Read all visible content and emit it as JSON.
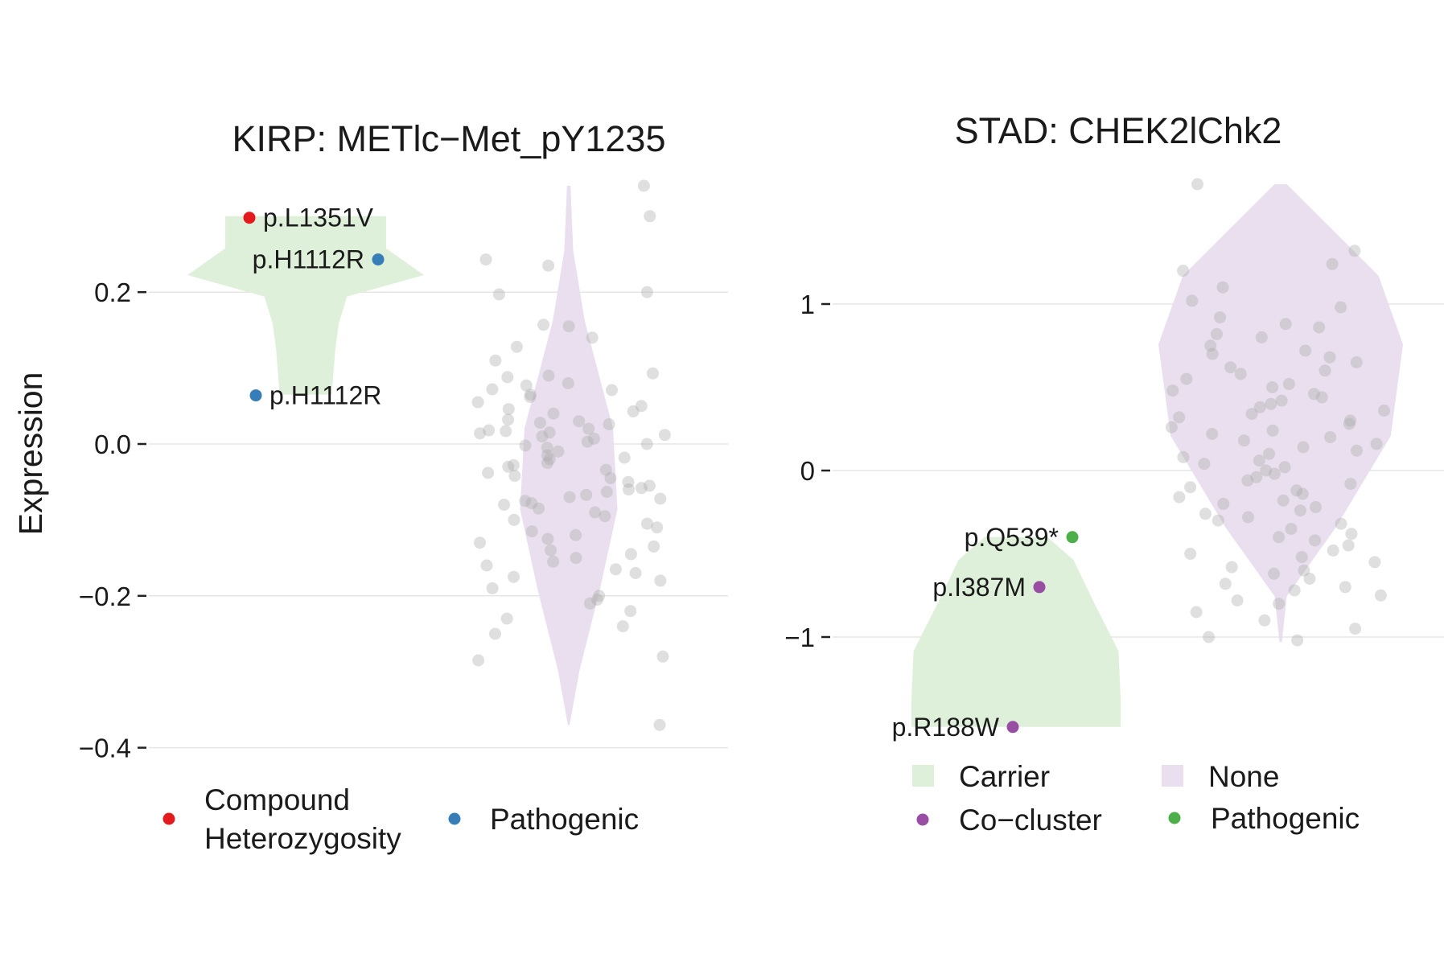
{
  "chart_data": [
    {
      "type": "violin",
      "title": "KIRP: METlc−Met_pY1235",
      "ylabel": "Expression",
      "xlabel": "",
      "ylim": [
        -0.42,
        0.365
      ],
      "yticks": [
        0.2,
        0.0,
        -0.2,
        -0.4
      ],
      "ytick_labels": [
        "0.2",
        "0.0",
        "−0.2",
        "−0.4"
      ],
      "groups": [
        {
          "name": "Carrier",
          "color": "#dff0da",
          "ymin": 0.065,
          "ymax": 0.3
        },
        {
          "name": "None",
          "color": "#e9dfee",
          "ymin": -0.37,
          "ymax": 0.34
        }
      ],
      "highlighted_points": [
        {
          "group": "Carrier",
          "y": 0.298,
          "label": "p.L1351V",
          "category": "Compound Heterozygosity",
          "color": "#e41a1c"
        },
        {
          "group": "Carrier",
          "y": 0.243,
          "label": "p.H1112R",
          "category": "Pathogenic",
          "color": "#377eb8"
        },
        {
          "group": "Carrier",
          "y": 0.064,
          "label": "p.H1112R",
          "category": "Pathogenic",
          "color": "#377eb8"
        }
      ],
      "background_points_y": [
        0.34,
        0.3,
        0.243,
        0.235,
        0.2,
        0.197,
        0.157,
        0.155,
        0.14,
        0.128,
        0.11,
        0.093,
        0.09,
        0.088,
        0.08,
        0.077,
        0.072,
        0.071,
        0.065,
        0.062,
        0.055,
        0.05,
        0.046,
        0.043,
        0.04,
        0.032,
        0.03,
        0.028,
        0.026,
        0.02,
        0.018,
        0.017,
        0.015,
        0.014,
        0.012,
        0.01,
        0.007,
        0.003,
        0.0,
        -0.002,
        -0.005,
        -0.01,
        -0.015,
        -0.018,
        -0.02,
        -0.025,
        -0.028,
        -0.03,
        -0.034,
        -0.038,
        -0.042,
        -0.045,
        -0.05,
        -0.055,
        -0.058,
        -0.06,
        -0.063,
        -0.067,
        -0.07,
        -0.072,
        -0.075,
        -0.078,
        -0.08,
        -0.085,
        -0.09,
        -0.095,
        -0.1,
        -0.105,
        -0.11,
        -0.115,
        -0.12,
        -0.125,
        -0.13,
        -0.135,
        -0.14,
        -0.145,
        -0.15,
        -0.155,
        -0.16,
        -0.165,
        -0.17,
        -0.175,
        -0.18,
        -0.19,
        -0.2,
        -0.205,
        -0.21,
        -0.22,
        -0.23,
        -0.24,
        -0.25,
        -0.28,
        -0.285,
        -0.37
      ],
      "legend": {
        "items": [
          {
            "label_lines": [
              "Compound",
              "Heterozygosity"
            ],
            "color": "#e41a1c",
            "shape": "point"
          },
          {
            "label_lines": [
              "Pathogenic"
            ],
            "color": "#377eb8",
            "shape": "point"
          }
        ]
      }
    },
    {
      "type": "violin",
      "title": "STAD: CHEK2lChk2",
      "ylabel": "",
      "xlabel": "",
      "ylim": [
        -1.83,
        1.82
      ],
      "yticks": [
        1,
        0,
        -1
      ],
      "ytick_labels": [
        "1",
        "0",
        "−1"
      ],
      "groups": [
        {
          "name": "Carrier",
          "color": "#dff0da",
          "ymin": -1.54,
          "ymax": -0.4
        },
        {
          "name": "None",
          "color": "#e9dfee",
          "ymin": -1.03,
          "ymax": 1.72
        }
      ],
      "highlighted_points": [
        {
          "group": "Carrier",
          "y": -0.4,
          "label": "p.Q539*",
          "category": "Pathogenic",
          "color": "#4daf4a"
        },
        {
          "group": "Carrier",
          "y": -0.7,
          "label": "p.I387M",
          "category": "Co−cluster",
          "color": "#984ea3"
        },
        {
          "group": "Carrier",
          "y": -1.54,
          "label": "p.R188W",
          "category": "Co−cluster",
          "color": "#984ea3"
        }
      ],
      "background_points_y": [
        1.72,
        1.32,
        1.24,
        1.2,
        1.1,
        1.02,
        0.98,
        0.92,
        0.88,
        0.86,
        0.82,
        0.8,
        0.75,
        0.72,
        0.7,
        0.68,
        0.65,
        0.62,
        0.6,
        0.58,
        0.55,
        0.52,
        0.5,
        0.48,
        0.46,
        0.44,
        0.42,
        0.4,
        0.38,
        0.36,
        0.34,
        0.32,
        0.3,
        0.28,
        0.26,
        0.24,
        0.22,
        0.2,
        0.18,
        0.16,
        0.14,
        0.12,
        0.1,
        0.08,
        0.06,
        0.04,
        0.02,
        0.0,
        -0.02,
        -0.04,
        -0.06,
        -0.08,
        -0.1,
        -0.12,
        -0.14,
        -0.16,
        -0.18,
        -0.2,
        -0.22,
        -0.24,
        -0.26,
        -0.28,
        -0.3,
        -0.32,
        -0.35,
        -0.38,
        -0.4,
        -0.42,
        -0.45,
        -0.48,
        -0.5,
        -0.52,
        -0.55,
        -0.58,
        -0.6,
        -0.62,
        -0.65,
        -0.68,
        -0.7,
        -0.72,
        -0.75,
        -0.78,
        -0.8,
        -0.85,
        -0.9,
        -0.95,
        -1.0,
        -1.02
      ],
      "legend": {
        "items": [
          {
            "label_lines": [
              "Carrier"
            ],
            "color": "#dff0da",
            "shape": "square"
          },
          {
            "label_lines": [
              "None"
            ],
            "color": "#e9dfee",
            "shape": "square"
          },
          {
            "label_lines": [
              "Co−cluster"
            ],
            "color": "#984ea3",
            "shape": "point"
          },
          {
            "label_lines": [
              "Pathogenic"
            ],
            "color": "#4daf4a",
            "shape": "point"
          }
        ]
      }
    }
  ]
}
